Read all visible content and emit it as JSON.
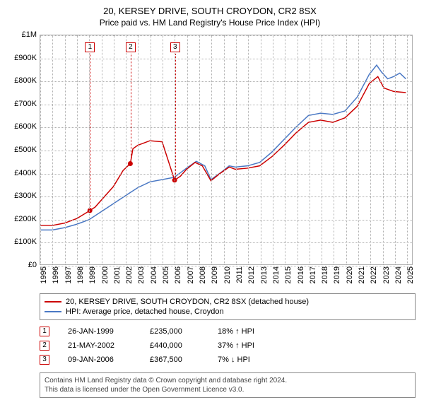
{
  "title": "20, KERSEY DRIVE, SOUTH CROYDON, CR2 8SX",
  "subtitle": "Price paid vs. HM Land Registry's House Price Index (HPI)",
  "chart": {
    "type": "line",
    "background_color": "#ffffff",
    "grid_color": "#b0b0b0",
    "grid_style": "dotted",
    "ylim": [
      0,
      1000000
    ],
    "ytick_step": 100000,
    "yticks": [
      "£0",
      "£100K",
      "£200K",
      "£300K",
      "£400K",
      "£500K",
      "£600K",
      "£700K",
      "£800K",
      "£900K",
      "£1M"
    ],
    "xlim": [
      1995,
      2025.5
    ],
    "xticks": [
      1995,
      1996,
      1997,
      1998,
      1999,
      2000,
      2001,
      2002,
      2003,
      2004,
      2005,
      2006,
      2007,
      2008,
      2009,
      2010,
      2011,
      2012,
      2013,
      2014,
      2015,
      2016,
      2017,
      2018,
      2019,
      2020,
      2021,
      2022,
      2023,
      2024,
      2025
    ],
    "label_fontsize": 11,
    "series": [
      {
        "name": "20, KERSEY DRIVE, SOUTH CROYDON, CR2 8SX (detached house)",
        "color": "#cc0000",
        "line_width": 1.5,
        "points": [
          [
            1995.0,
            170000
          ],
          [
            1996.0,
            170000
          ],
          [
            1997.0,
            180000
          ],
          [
            1998.0,
            200000
          ],
          [
            1999.07,
            235000
          ],
          [
            1999.5,
            250000
          ],
          [
            2000.0,
            280000
          ],
          [
            2001.0,
            340000
          ],
          [
            2001.8,
            410000
          ],
          [
            2002.39,
            440000
          ],
          [
            2002.6,
            505000
          ],
          [
            2003.0,
            520000
          ],
          [
            2004.0,
            540000
          ],
          [
            2005.0,
            535000
          ],
          [
            2006.02,
            367500
          ],
          [
            2006.5,
            385000
          ],
          [
            2007.0,
            415000
          ],
          [
            2007.7,
            445000
          ],
          [
            2008.3,
            430000
          ],
          [
            2009.0,
            365000
          ],
          [
            2009.7,
            395000
          ],
          [
            2010.5,
            425000
          ],
          [
            2011.0,
            415000
          ],
          [
            2012.0,
            420000
          ],
          [
            2013.0,
            430000
          ],
          [
            2014.0,
            470000
          ],
          [
            2015.0,
            520000
          ],
          [
            2016.0,
            575000
          ],
          [
            2017.0,
            620000
          ],
          [
            2018.0,
            630000
          ],
          [
            2019.0,
            620000
          ],
          [
            2020.0,
            640000
          ],
          [
            2021.0,
            690000
          ],
          [
            2022.0,
            790000
          ],
          [
            2022.7,
            820000
          ],
          [
            2023.2,
            770000
          ],
          [
            2024.0,
            755000
          ],
          [
            2025.0,
            750000
          ]
        ]
      },
      {
        "name": "HPI: Average price, detached house, Croydon",
        "color": "#4a78c4",
        "line_width": 1.5,
        "points": [
          [
            1995.0,
            150000
          ],
          [
            1996.0,
            150000
          ],
          [
            1997.0,
            160000
          ],
          [
            1998.0,
            175000
          ],
          [
            1999.0,
            195000
          ],
          [
            2000.0,
            230000
          ],
          [
            2001.0,
            265000
          ],
          [
            2002.0,
            300000
          ],
          [
            2003.0,
            335000
          ],
          [
            2004.0,
            360000
          ],
          [
            2005.0,
            370000
          ],
          [
            2006.0,
            380000
          ],
          [
            2007.0,
            420000
          ],
          [
            2007.8,
            450000
          ],
          [
            2008.5,
            430000
          ],
          [
            2009.0,
            370000
          ],
          [
            2009.8,
            400000
          ],
          [
            2010.5,
            430000
          ],
          [
            2011.0,
            425000
          ],
          [
            2012.0,
            430000
          ],
          [
            2013.0,
            445000
          ],
          [
            2014.0,
            490000
          ],
          [
            2015.0,
            545000
          ],
          [
            2016.0,
            600000
          ],
          [
            2017.0,
            650000
          ],
          [
            2018.0,
            660000
          ],
          [
            2019.0,
            655000
          ],
          [
            2020.0,
            670000
          ],
          [
            2021.0,
            730000
          ],
          [
            2022.0,
            830000
          ],
          [
            2022.6,
            870000
          ],
          [
            2023.0,
            840000
          ],
          [
            2023.5,
            810000
          ],
          [
            2024.0,
            820000
          ],
          [
            2024.5,
            835000
          ],
          [
            2025.0,
            810000
          ]
        ]
      }
    ],
    "sale_markers": [
      {
        "n": "1",
        "x": 1999.07,
        "y": 235000
      },
      {
        "n": "2",
        "x": 2002.39,
        "y": 440000
      },
      {
        "n": "3",
        "x": 2006.02,
        "y": 367500
      }
    ]
  },
  "legend": {
    "items": [
      {
        "color": "#cc0000",
        "label": "20, KERSEY DRIVE, SOUTH CROYDON, CR2 8SX (detached house)"
      },
      {
        "color": "#4a78c4",
        "label": "HPI: Average price, detached house, Croydon"
      }
    ]
  },
  "sales": [
    {
      "n": "1",
      "date": "26-JAN-1999",
      "price": "£235,000",
      "diff": "18% ↑ HPI"
    },
    {
      "n": "2",
      "date": "21-MAY-2002",
      "price": "£440,000",
      "diff": "37% ↑ HPI"
    },
    {
      "n": "3",
      "date": "09-JAN-2006",
      "price": "£367,500",
      "diff": "7% ↓ HPI"
    }
  ],
  "footer": {
    "line1": "Contains HM Land Registry data © Crown copyright and database right 2024.",
    "line2": "This data is licensed under the Open Government Licence v3.0."
  }
}
